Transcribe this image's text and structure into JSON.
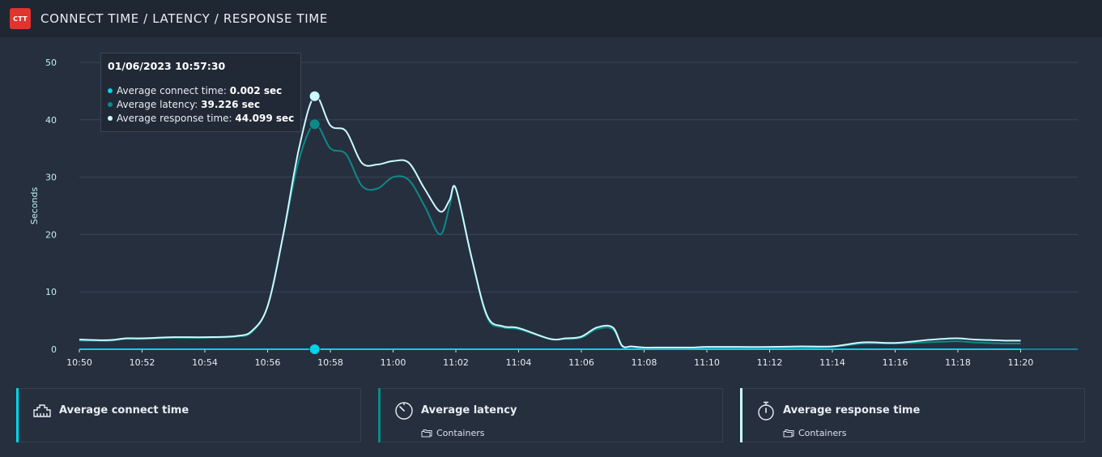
{
  "header": {
    "logo_text": "CTT",
    "title": "CONNECT TIME / LATENCY / RESPONSE TIME"
  },
  "colors": {
    "connect": "#00d4e8",
    "latency": "#0d8a88",
    "response": "#ccfbff",
    "grid": "#3a4454",
    "axis_text": "#bff0f2"
  },
  "tooltip": {
    "date": "01/06/2023 10:57:30",
    "rows": [
      {
        "label": "Average connect time:",
        "value": "0.002 sec"
      },
      {
        "label": "Average latency:",
        "value": "39.226 sec"
      },
      {
        "label": "Average response time:",
        "value": "44.099 sec"
      }
    ]
  },
  "chart_data": {
    "type": "line",
    "ylabel": "Seconds",
    "ylim": [
      0,
      50
    ],
    "yticks": [
      "0",
      "10",
      "20",
      "30",
      "40",
      "50"
    ],
    "xticks": [
      "10:50",
      "10:52",
      "10:54",
      "10:56",
      "10:58",
      "11:00",
      "11:02",
      "11:04",
      "11:06",
      "11:08",
      "11:10",
      "11:12",
      "11:14",
      "11:16",
      "11:18",
      "11:20"
    ],
    "xlim_minutes": [
      0,
      31.5
    ],
    "grid": true,
    "series": [
      {
        "name": "Average connect time",
        "x": [
          0,
          1,
          2,
          3,
          4,
          5,
          6,
          7,
          7.5,
          8,
          9,
          10,
          11,
          12,
          13,
          14,
          15,
          16,
          17,
          18,
          19,
          20,
          21,
          22,
          23,
          24,
          25,
          26,
          27,
          28,
          29,
          30
        ],
        "y": [
          0,
          0,
          0,
          0,
          0,
          0,
          0,
          0,
          0.002,
          0,
          0,
          0,
          0,
          0,
          0,
          0,
          0,
          0,
          0,
          0,
          0,
          0,
          0,
          0,
          0,
          0,
          0,
          0,
          0,
          0,
          0,
          0
        ]
      },
      {
        "name": "Average latency",
        "x": [
          0,
          0.5,
          1,
          1.5,
          2,
          3,
          4,
          5,
          5.5,
          6,
          6.5,
          7,
          7.5,
          8,
          8.5,
          9,
          9.5,
          10,
          10.5,
          11,
          11.5,
          11.8,
          12,
          12.5,
          13,
          13.5,
          14,
          15,
          15.5,
          16,
          16.5,
          17,
          17.3,
          17.6,
          18,
          18.5,
          19,
          19.5,
          20,
          21,
          22,
          23,
          24,
          25,
          26,
          27,
          27.5,
          28,
          28.5,
          29,
          29.5,
          30
        ],
        "y": [
          1.5,
          1.5,
          1.5,
          1.8,
          1.8,
          2.0,
          2.0,
          2.2,
          3.0,
          7.5,
          20,
          33,
          39.226,
          35,
          34,
          28.5,
          28,
          30,
          29.5,
          25,
          20,
          25,
          28,
          16,
          5.5,
          3.8,
          3.5,
          1.8,
          1.8,
          2.0,
          3.5,
          3.5,
          0.5,
          0.4,
          0.2,
          0.2,
          0.2,
          0.2,
          0.3,
          0.3,
          0.3,
          0.3,
          0.4,
          1.0,
          1.0,
          1.2,
          1.3,
          1.4,
          1.2,
          1.1,
          1.0,
          1.0
        ]
      },
      {
        "name": "Average response time",
        "x": [
          0,
          0.5,
          1,
          1.5,
          2,
          3,
          4,
          5,
          5.5,
          6,
          6.5,
          7,
          7.5,
          8,
          8.5,
          9,
          9.5,
          10,
          10.5,
          11,
          11.5,
          11.8,
          12,
          12.5,
          13,
          13.5,
          14,
          15,
          15.5,
          16,
          16.5,
          17,
          17.3,
          17.6,
          18,
          18.5,
          19,
          19.5,
          20,
          21,
          22,
          23,
          24,
          25,
          26,
          27,
          27.5,
          28,
          28.5,
          29,
          29.5,
          30
        ],
        "y": [
          1.7,
          1.6,
          1.6,
          1.9,
          1.9,
          2.1,
          2.1,
          2.3,
          3.2,
          7.5,
          20,
          35,
          44.099,
          39,
          38,
          32.5,
          32.2,
          32.8,
          32.5,
          28,
          24,
          26,
          28,
          16,
          5.8,
          4.0,
          3.7,
          1.8,
          1.9,
          2.2,
          3.8,
          3.8,
          0.6,
          0.5,
          0.3,
          0.3,
          0.3,
          0.3,
          0.4,
          0.4,
          0.4,
          0.5,
          0.5,
          1.2,
          1.1,
          1.6,
          1.8,
          1.9,
          1.7,
          1.6,
          1.5,
          1.5
        ]
      }
    ],
    "highlight_x": 7.5
  },
  "legend": [
    {
      "label": "Average connect time",
      "icon": "ethernet-port-icon",
      "sub": ""
    },
    {
      "label": "Average latency",
      "icon": "stopwatch-dial-icon",
      "sub": "Containers"
    },
    {
      "label": "Average response time",
      "icon": "timer-icon",
      "sub": "Containers"
    }
  ]
}
